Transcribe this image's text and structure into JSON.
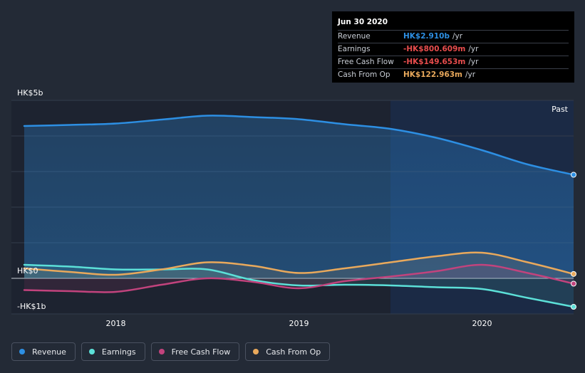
{
  "chart_data": {
    "type": "line",
    "x_ticks": [
      {
        "label": "2018",
        "t": 2018.0
      },
      {
        "label": "2019",
        "t": 2019.0
      },
      {
        "label": "2020",
        "t": 2020.0
      }
    ],
    "y_ticks": [
      {
        "label": "HK$5b",
        "value": 5
      },
      {
        "label": "HK$0",
        "value": 0
      },
      {
        "label": "-HK$1b",
        "value": -1
      }
    ],
    "ylim": [
      -1,
      5
    ],
    "xlim": [
      2017.43,
      2020.5
    ],
    "past_label": "Past",
    "past_start": 2019.5,
    "series": [
      {
        "name": "Revenue",
        "color": "#2d8fe3",
        "t": [
          2017.5,
          2017.75,
          2018.0,
          2018.25,
          2018.5,
          2018.75,
          2019.0,
          2019.25,
          2019.5,
          2019.75,
          2020.0,
          2020.25,
          2020.5
        ],
        "values": [
          4.28,
          4.31,
          4.35,
          4.46,
          4.57,
          4.53,
          4.47,
          4.33,
          4.2,
          3.95,
          3.6,
          3.2,
          2.91
        ]
      },
      {
        "name": "Earnings",
        "color": "#5ce0d8",
        "t": [
          2017.5,
          2017.75,
          2018.0,
          2018.25,
          2018.5,
          2018.75,
          2019.0,
          2019.25,
          2019.5,
          2019.75,
          2020.0,
          2020.25,
          2020.5
        ],
        "values": [
          0.38,
          0.33,
          0.25,
          0.25,
          0.25,
          -0.05,
          -0.2,
          -0.18,
          -0.2,
          -0.25,
          -0.3,
          -0.55,
          -0.8006
        ]
      },
      {
        "name": "Free Cash Flow",
        "color": "#c2437d",
        "t": [
          2017.5,
          2017.75,
          2018.0,
          2018.25,
          2018.5,
          2018.75,
          2019.0,
          2019.25,
          2019.5,
          2019.75,
          2020.0,
          2020.25,
          2020.5
        ],
        "values": [
          -0.33,
          -0.36,
          -0.38,
          -0.18,
          0.0,
          -0.1,
          -0.28,
          -0.08,
          0.05,
          0.2,
          0.38,
          0.15,
          -0.1497
        ]
      },
      {
        "name": "Cash From Op",
        "color": "#e9a95c",
        "t": [
          2017.5,
          2017.75,
          2018.0,
          2018.25,
          2018.5,
          2018.75,
          2019.0,
          2019.25,
          2019.5,
          2019.75,
          2020.0,
          2020.25,
          2020.5
        ],
        "values": [
          0.28,
          0.18,
          0.1,
          0.25,
          0.45,
          0.35,
          0.15,
          0.28,
          0.45,
          0.62,
          0.72,
          0.45,
          0.123
        ]
      }
    ]
  },
  "tooltip": {
    "title": "Jun 30 2020",
    "rows": [
      {
        "label": "Revenue",
        "value": "HK$2.910b",
        "unit": "/yr",
        "color": "#2d8fe3"
      },
      {
        "label": "Earnings",
        "value": "-HK$800.609m",
        "unit": "/yr",
        "color": "#e84d4d"
      },
      {
        "label": "Free Cash Flow",
        "value": "-HK$149.653m",
        "unit": "/yr",
        "color": "#e84d4d"
      },
      {
        "label": "Cash From Op",
        "value": "HK$122.963m",
        "unit": "/yr",
        "color": "#e9a95c"
      }
    ]
  },
  "legend": [
    {
      "label": "Revenue",
      "color": "#2d8fe3"
    },
    {
      "label": "Earnings",
      "color": "#5ce0d8"
    },
    {
      "label": "Free Cash Flow",
      "color": "#c2437d"
    },
    {
      "label": "Cash From Op",
      "color": "#e9a95c"
    }
  ]
}
